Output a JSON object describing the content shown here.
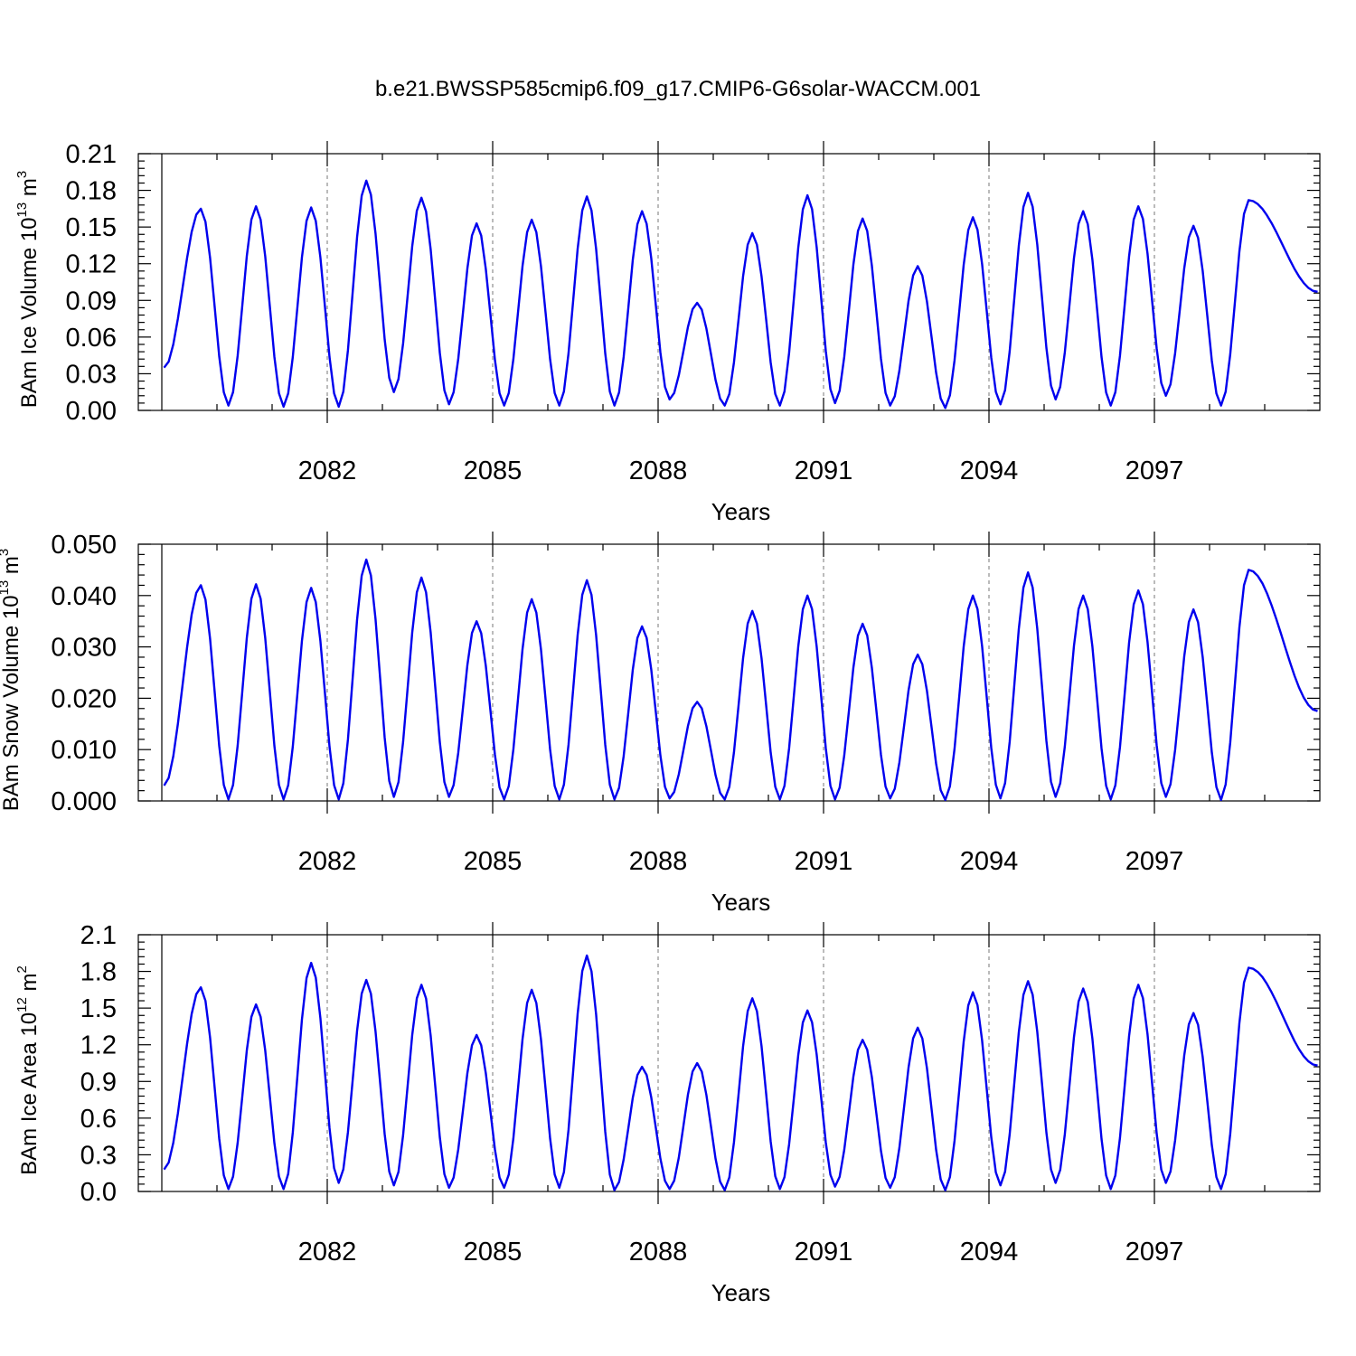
{
  "title": "b.e21.BWSSP585cmip6.f09_g17.CMIP6-G6solar-WACCM.001",
  "chart_data": [
    {
      "type": "line",
      "ylabel_main": "BAm Ice Volume 10",
      "ylabel_exp": "13",
      "ylabel_unit": " m",
      "ylabel_unit_exp": "3",
      "xlabel": "Years",
      "xlim": [
        2079,
        2100
      ],
      "ylim": [
        0,
        0.21
      ],
      "yticks": [
        "0.00",
        "0.03",
        "0.06",
        "0.09",
        "0.12",
        "0.15",
        "0.18",
        "0.21"
      ],
      "xticks": [
        "2082",
        "2085",
        "2088",
        "2091",
        "2094",
        "2097"
      ],
      "grid": "dashed at major x ticks",
      "series": [
        {
          "color": "#0000ee",
          "peak_month": 8,
          "peaks": [
            0.165,
            0.167,
            0.166,
            0.188,
            0.174,
            0.153,
            0.156,
            0.175,
            0.163,
            0.088,
            0.145,
            0.176,
            0.157,
            0.118,
            0.158,
            0.178,
            0.163,
            0.167,
            0.151,
            0.172
          ],
          "troughs": [
            0.004,
            0.003,
            0.003,
            0.015,
            0.005,
            0.004,
            0.004,
            0.004,
            0.009,
            0.004,
            0.004,
            0.006,
            0.004,
            0.002,
            0.005,
            0.009,
            0.004,
            0.012,
            0.004
          ],
          "start": 0.035,
          "end": 0.097
        }
      ]
    },
    {
      "type": "line",
      "ylabel_main": "BAm Snow Volume 10",
      "ylabel_exp": "13",
      "ylabel_unit": " m",
      "ylabel_unit_exp": "3",
      "xlabel": "Years",
      "xlim": [
        2079,
        2100
      ],
      "ylim": [
        0,
        0.05
      ],
      "yticks": [
        "0.000",
        "0.010",
        "0.020",
        "0.030",
        "0.040",
        "0.050"
      ],
      "xticks": [
        "2082",
        "2085",
        "2088",
        "2091",
        "2094",
        "2097"
      ],
      "grid": "dashed at major x ticks",
      "series": [
        {
          "color": "#0000ee",
          "peak_month": 8,
          "peaks": [
            0.042,
            0.0422,
            0.0415,
            0.047,
            0.0435,
            0.035,
            0.0393,
            0.043,
            0.034,
            0.0193,
            0.037,
            0.04,
            0.0345,
            0.0285,
            0.04,
            0.0445,
            0.04,
            0.041,
            0.0373,
            0.045
          ],
          "troughs": [
            0.0003,
            0.0003,
            0.0003,
            0.0008,
            0.0008,
            0.0003,
            0.0003,
            0.0003,
            0.0005,
            0.0003,
            0.0003,
            0.0003,
            0.0005,
            0.0002,
            0.0005,
            0.0008,
            0.0003,
            0.0008,
            0.0002
          ],
          "start": 0.003,
          "end": 0.0175
        }
      ]
    },
    {
      "type": "line",
      "ylabel_main": "BAm Ice Area 10",
      "ylabel_exp": "12",
      "ylabel_unit": " m",
      "ylabel_unit_exp": "2",
      "xlabel": "Years",
      "xlim": [
        2079,
        2100
      ],
      "ylim": [
        0,
        2.1
      ],
      "yticks": [
        "0.0",
        "0.3",
        "0.6",
        "0.9",
        "1.2",
        "1.5",
        "1.8",
        "2.1"
      ],
      "xticks": [
        "2082",
        "2085",
        "2088",
        "2091",
        "2094",
        "2097"
      ],
      "grid": "dashed at major x ticks",
      "series": [
        {
          "color": "#0000ee",
          "peak_month": 8,
          "peaks": [
            1.67,
            1.53,
            1.87,
            1.73,
            1.69,
            1.28,
            1.65,
            1.93,
            1.02,
            1.05,
            1.58,
            1.48,
            1.24,
            1.34,
            1.63,
            1.72,
            1.66,
            1.69,
            1.46,
            1.83
          ],
          "troughs": [
            0.02,
            0.02,
            0.07,
            0.05,
            0.03,
            0.03,
            0.03,
            0.01,
            0.02,
            0.01,
            0.02,
            0.04,
            0.03,
            0.01,
            0.05,
            0.07,
            0.02,
            0.07,
            0.02
          ],
          "start": 0.18,
          "end": 1.03
        }
      ]
    }
  ]
}
